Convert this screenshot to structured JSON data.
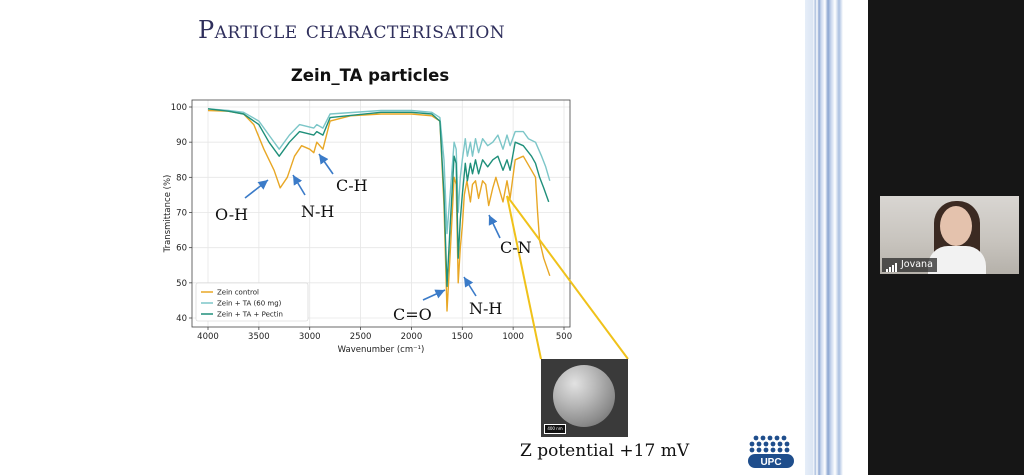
{
  "slide": {
    "title": "Particle characterisation",
    "chart_title": "Zein_TA particles",
    "annotations": {
      "oh": "O-H",
      "nh1": "N-H",
      "ch": "C-H",
      "co": "C=O",
      "nh2": "N-H",
      "cn": "C-N"
    },
    "sem": {
      "scale_bar_label": "400 nm"
    },
    "zeta": "Z potential +17 mV",
    "logo_text": "UPC"
  },
  "participant": {
    "name": "Jovana"
  },
  "colors": {
    "slide_title": "#2f2f5c",
    "zein_control": "#e8a725",
    "zein_ta": "#7cc6c8",
    "zein_ta_pectin": "#1f8f7a",
    "arrow": "#3b7bc8",
    "callout": "#f0c21a",
    "logo": "#1f4e8c"
  },
  "chart_data": {
    "type": "line",
    "xlabel": "Wavenumber (cm⁻¹)",
    "ylabel": "Transmittance (%)",
    "xlim": [
      4000,
      500
    ],
    "ylim": [
      40,
      100
    ],
    "xticks": [
      4000,
      3500,
      3000,
      2500,
      2000,
      1500,
      1000,
      500
    ],
    "yticks": [
      40,
      50,
      60,
      70,
      80,
      90,
      100
    ],
    "legend": "bottom-left",
    "series": [
      {
        "name": "Zein control",
        "color": "#e8a725",
        "points": [
          [
            4000,
            99
          ],
          [
            3800,
            98.8
          ],
          [
            3650,
            98
          ],
          [
            3550,
            95
          ],
          [
            3450,
            88
          ],
          [
            3350,
            82
          ],
          [
            3290,
            77
          ],
          [
            3220,
            80
          ],
          [
            3150,
            86
          ],
          [
            3080,
            89
          ],
          [
            3000,
            88
          ],
          [
            2960,
            87
          ],
          [
            2930,
            90
          ],
          [
            2870,
            88
          ],
          [
            2800,
            96
          ],
          [
            2600,
            97.5
          ],
          [
            2300,
            98
          ],
          [
            2000,
            98
          ],
          [
            1800,
            97.5
          ],
          [
            1720,
            96
          ],
          [
            1680,
            72
          ],
          [
            1650,
            42
          ],
          [
            1620,
            58
          ],
          [
            1580,
            80
          ],
          [
            1560,
            78
          ],
          [
            1540,
            50
          ],
          [
            1520,
            60
          ],
          [
            1500,
            66
          ],
          [
            1480,
            75
          ],
          [
            1455,
            79
          ],
          [
            1420,
            73
          ],
          [
            1400,
            78
          ],
          [
            1370,
            79
          ],
          [
            1340,
            74
          ],
          [
            1300,
            79
          ],
          [
            1270,
            78
          ],
          [
            1240,
            72
          ],
          [
            1200,
            77
          ],
          [
            1170,
            80
          ],
          [
            1150,
            78
          ],
          [
            1100,
            73
          ],
          [
            1060,
            79
          ],
          [
            1030,
            74
          ],
          [
            980,
            85
          ],
          [
            900,
            86
          ],
          [
            820,
            82
          ],
          [
            780,
            80
          ],
          [
            760,
            70
          ],
          [
            740,
            62
          ],
          [
            700,
            57
          ],
          [
            640,
            52
          ]
        ]
      },
      {
        "name": "Zein + TA (60 mg)",
        "color": "#7cc6c8",
        "points": [
          [
            4000,
            99.5
          ],
          [
            3800,
            99
          ],
          [
            3650,
            98.5
          ],
          [
            3500,
            96
          ],
          [
            3400,
            92
          ],
          [
            3300,
            88
          ],
          [
            3200,
            92
          ],
          [
            3100,
            95
          ],
          [
            2960,
            94
          ],
          [
            2930,
            95
          ],
          [
            2870,
            94
          ],
          [
            2800,
            98
          ],
          [
            2300,
            99
          ],
          [
            2000,
            99
          ],
          [
            1800,
            98.5
          ],
          [
            1720,
            97
          ],
          [
            1680,
            85
          ],
          [
            1650,
            64
          ],
          [
            1620,
            75
          ],
          [
            1580,
            90
          ],
          [
            1560,
            88
          ],
          [
            1540,
            70
          ],
          [
            1520,
            80
          ],
          [
            1500,
            85
          ],
          [
            1470,
            91
          ],
          [
            1450,
            86
          ],
          [
            1420,
            90
          ],
          [
            1400,
            86
          ],
          [
            1370,
            91
          ],
          [
            1340,
            87
          ],
          [
            1300,
            91
          ],
          [
            1250,
            89
          ],
          [
            1200,
            90
          ],
          [
            1150,
            92
          ],
          [
            1100,
            88
          ],
          [
            1060,
            92
          ],
          [
            1030,
            89
          ],
          [
            980,
            93
          ],
          [
            900,
            93
          ],
          [
            850,
            91
          ],
          [
            780,
            90
          ],
          [
            720,
            86
          ],
          [
            680,
            83
          ],
          [
            640,
            79
          ]
        ]
      },
      {
        "name": "Zein + TA + Pectin",
        "color": "#1f8f7a",
        "points": [
          [
            4000,
            99.5
          ],
          [
            3800,
            98.8
          ],
          [
            3650,
            98
          ],
          [
            3500,
            95
          ],
          [
            3400,
            90
          ],
          [
            3300,
            86
          ],
          [
            3200,
            90
          ],
          [
            3100,
            93
          ],
          [
            2960,
            92
          ],
          [
            2930,
            93
          ],
          [
            2870,
            92
          ],
          [
            2800,
            97
          ],
          [
            2300,
            98.5
          ],
          [
            2000,
            98.5
          ],
          [
            1800,
            98
          ],
          [
            1720,
            96
          ],
          [
            1680,
            75
          ],
          [
            1650,
            49
          ],
          [
            1620,
            66
          ],
          [
            1580,
            86
          ],
          [
            1560,
            84
          ],
          [
            1540,
            57
          ],
          [
            1520,
            68
          ],
          [
            1500,
            75
          ],
          [
            1470,
            84
          ],
          [
            1450,
            79
          ],
          [
            1420,
            84
          ],
          [
            1400,
            81
          ],
          [
            1370,
            85
          ],
          [
            1340,
            81
          ],
          [
            1300,
            85
          ],
          [
            1250,
            83
          ],
          [
            1200,
            85
          ],
          [
            1150,
            86
          ],
          [
            1100,
            82
          ],
          [
            1060,
            85
          ],
          [
            1030,
            82
          ],
          [
            980,
            90
          ],
          [
            900,
            89
          ],
          [
            820,
            86
          ],
          [
            780,
            84
          ],
          [
            740,
            80
          ],
          [
            700,
            77
          ],
          [
            650,
            73
          ]
        ]
      }
    ]
  }
}
